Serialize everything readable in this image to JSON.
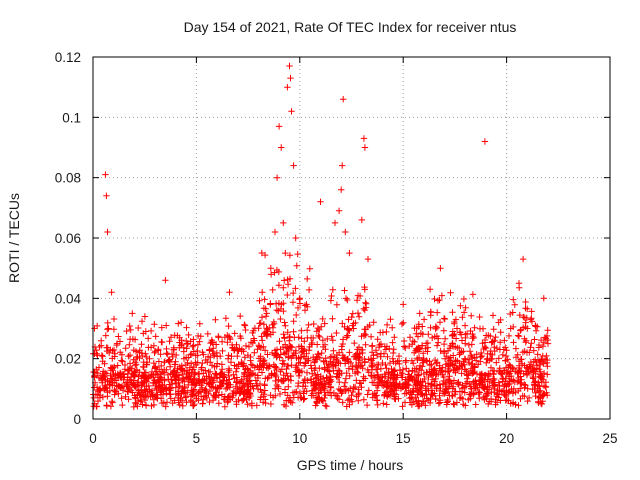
{
  "chart_data": {
    "type": "scatter",
    "title": "Day 154 of 2021, Rate Of TEC Index for receiver ntus",
    "xlabel": "GPS time / hours",
    "ylabel": "ROTI / TECUs",
    "xlim": [
      0,
      25
    ],
    "ylim": [
      0,
      0.12
    ],
    "xticks": [
      0,
      5,
      10,
      15,
      20,
      25
    ],
    "xtick_labels": [
      "0",
      "5",
      "10",
      "15",
      "20",
      "25"
    ],
    "yticks": [
      0,
      0.02,
      0.04,
      0.06,
      0.08,
      0.1,
      0.12
    ],
    "ytick_labels": [
      "0",
      "0.02",
      "0.04",
      "0.06",
      "0.08",
      "0.1",
      "0.12"
    ],
    "grid": true,
    "marker": "+",
    "color": "#ff0000",
    "data_range_hours": [
      0,
      22
    ],
    "series": [
      {
        "name": "ROTI",
        "x": [
          0.1,
          0.6,
          0.65,
          0.7,
          0.75,
          0.9,
          1.2,
          1.6,
          1.9,
          2.2,
          2.6,
          3.2,
          3.5,
          3.8,
          4.4,
          5.0,
          5.6,
          6.2,
          6.6,
          7.2,
          7.6,
          8.2,
          8.4,
          8.6,
          8.8,
          8.9,
          9.0,
          9.1,
          9.2,
          9.3,
          9.4,
          9.5,
          9.55,
          9.6,
          9.7,
          9.8,
          10.0,
          10.3,
          10.6,
          11.0,
          11.4,
          11.7,
          11.9,
          12.0,
          12.05,
          12.1,
          12.2,
          12.4,
          12.6,
          13.0,
          13.1,
          13.15,
          13.3,
          13.8,
          14.2,
          14.6,
          15.0,
          15.4,
          15.8,
          16.3,
          16.8,
          17.2,
          17.6,
          18.0,
          18.4,
          18.8,
          18.95,
          19.3,
          19.8,
          20.2,
          20.6,
          20.8,
          21.0,
          21.4,
          21.8,
          22.0
        ],
        "y": [
          0.012,
          0.081,
          0.074,
          0.062,
          0.03,
          0.042,
          0.015,
          0.012,
          0.035,
          0.014,
          0.018,
          0.011,
          0.046,
          0.013,
          0.02,
          0.012,
          0.014,
          0.011,
          0.042,
          0.013,
          0.016,
          0.018,
          0.035,
          0.05,
          0.062,
          0.08,
          0.097,
          0.09,
          0.065,
          0.055,
          0.11,
          0.117,
          0.113,
          0.102,
          0.084,
          0.06,
          0.04,
          0.02,
          0.015,
          0.072,
          0.018,
          0.065,
          0.069,
          0.076,
          0.084,
          0.106,
          0.062,
          0.055,
          0.03,
          0.066,
          0.093,
          0.09,
          0.053,
          0.018,
          0.012,
          0.016,
          0.038,
          0.014,
          0.035,
          0.043,
          0.05,
          0.02,
          0.03,
          0.025,
          0.012,
          0.015,
          0.092,
          0.02,
          0.015,
          0.03,
          0.045,
          0.053,
          0.03,
          0.015,
          0.04,
          0.025
        ]
      }
    ]
  }
}
